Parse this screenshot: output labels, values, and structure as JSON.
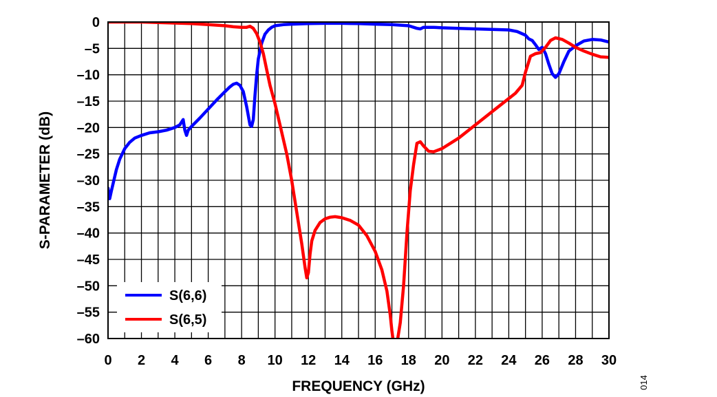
{
  "chart_data": {
    "type": "line",
    "xlabel": "FREQUENCY (GHz)",
    "ylabel": "S-PARAMETER (dB)",
    "xlim": [
      0,
      30
    ],
    "ylim": [
      -60,
      0
    ],
    "x_ticks": [
      "0",
      "2",
      "4",
      "6",
      "8",
      "10",
      "12",
      "14",
      "16",
      "18",
      "20",
      "22",
      "24",
      "26",
      "28",
      "30"
    ],
    "y_ticks": [
      "0",
      "–5",
      "–10",
      "–15",
      "–20",
      "–25",
      "–30",
      "–35",
      "–40",
      "–45",
      "–50",
      "–55",
      "–60"
    ],
    "x_minor_step": 1,
    "y_grid_step": 5,
    "grid": true,
    "legend_position": "bottom-left",
    "figure_number": "014",
    "series": [
      {
        "name": "S(6,6)",
        "color": "#0000ff",
        "x": [
          0.0,
          0.1,
          0.2,
          0.35,
          0.5,
          0.7,
          1.0,
          1.3,
          1.6,
          2.0,
          2.5,
          3.0,
          3.5,
          4.0,
          4.3,
          4.5,
          4.6,
          4.7,
          4.8,
          5.0,
          5.5,
          6.0,
          6.5,
          7.0,
          7.3,
          7.5,
          7.7,
          7.9,
          8.1,
          8.3,
          8.5,
          8.6,
          8.7,
          8.8,
          8.9,
          9.0,
          9.2,
          9.4,
          9.6,
          9.8,
          10.0,
          10.5,
          11.0,
          12.0,
          13.0,
          14.0,
          15.0,
          16.0,
          17.0,
          18.0,
          18.5,
          18.7,
          18.9,
          19.5,
          20.0,
          21.0,
          22.0,
          23.0,
          24.0,
          24.5,
          25.0,
          25.2,
          25.4,
          25.6,
          25.8,
          26.0,
          26.2,
          26.4,
          26.6,
          26.8,
          27.0,
          27.3,
          27.6,
          28.0,
          28.5,
          29.0,
          29.5,
          30.0
        ],
        "y": [
          -31.5,
          -33.5,
          -32.0,
          -30.0,
          -28.0,
          -26.0,
          -24.0,
          -22.8,
          -22.0,
          -21.5,
          -21.0,
          -20.8,
          -20.5,
          -20.0,
          -19.5,
          -18.5,
          -20.5,
          -21.5,
          -20.5,
          -19.8,
          -18.2,
          -16.5,
          -14.8,
          -13.2,
          -12.3,
          -11.8,
          -11.6,
          -12.0,
          -13.2,
          -16.0,
          -19.5,
          -19.8,
          -18.5,
          -14.0,
          -10.0,
          -7.0,
          -4.0,
          -2.3,
          -1.5,
          -1.0,
          -0.7,
          -0.5,
          -0.4,
          -0.3,
          -0.25,
          -0.25,
          -0.3,
          -0.4,
          -0.5,
          -0.7,
          -1.2,
          -1.3,
          -1.0,
          -1.0,
          -1.1,
          -1.2,
          -1.3,
          -1.4,
          -1.5,
          -1.8,
          -2.5,
          -3.2,
          -3.5,
          -4.3,
          -5.2,
          -4.8,
          -6.0,
          -8.0,
          -9.8,
          -10.5,
          -9.8,
          -7.5,
          -5.5,
          -4.5,
          -3.6,
          -3.3,
          -3.4,
          -3.8
        ]
      },
      {
        "name": "S(6,5)",
        "color": "#ff0000",
        "x": [
          0.0,
          1.0,
          2.0,
          3.0,
          4.0,
          5.0,
          6.0,
          7.0,
          7.5,
          8.0,
          8.3,
          8.5,
          8.7,
          8.9,
          9.1,
          9.3,
          9.5,
          9.7,
          10.0,
          10.3,
          10.7,
          11.0,
          11.3,
          11.6,
          11.8,
          11.9,
          12.0,
          12.1,
          12.2,
          12.4,
          12.7,
          13.0,
          13.3,
          13.6,
          14.0,
          14.5,
          15.0,
          15.5,
          16.0,
          16.4,
          16.7,
          16.9,
          17.0,
          17.1,
          17.3,
          17.5,
          17.7,
          17.9,
          18.1,
          18.3,
          18.5,
          18.7,
          18.9,
          19.2,
          19.5,
          20.0,
          21.0,
          22.0,
          23.0,
          24.0,
          24.4,
          24.8,
          25.0,
          25.3,
          25.6,
          25.9,
          26.2,
          26.5,
          26.8,
          27.2,
          27.6,
          28.0,
          28.5,
          29.0,
          29.5,
          30.0
        ],
        "y": [
          0.0,
          0.0,
          0.0,
          -0.1,
          -0.2,
          -0.3,
          -0.5,
          -0.7,
          -0.9,
          -1.0,
          -1.0,
          -0.8,
          -1.2,
          -2.2,
          -3.8,
          -6.0,
          -9.0,
          -12.0,
          -15.5,
          -19.5,
          -25.0,
          -30.0,
          -36.0,
          -42.0,
          -46.5,
          -48.5,
          -47.5,
          -44.0,
          -41.5,
          -39.5,
          -38.0,
          -37.3,
          -37.0,
          -36.9,
          -37.1,
          -37.6,
          -38.5,
          -40.5,
          -43.5,
          -47.0,
          -51.0,
          -55.5,
          -58.5,
          -61.0,
          -61.0,
          -57.0,
          -50.0,
          -40.0,
          -32.0,
          -27.0,
          -23.0,
          -22.7,
          -23.5,
          -24.5,
          -24.6,
          -24.0,
          -22.0,
          -19.5,
          -17.0,
          -14.5,
          -13.5,
          -12.0,
          -9.5,
          -6.5,
          -6.0,
          -5.8,
          -4.8,
          -3.5,
          -3.0,
          -3.3,
          -4.0,
          -4.8,
          -5.5,
          -6.1,
          -6.6,
          -6.7
        ]
      }
    ]
  }
}
